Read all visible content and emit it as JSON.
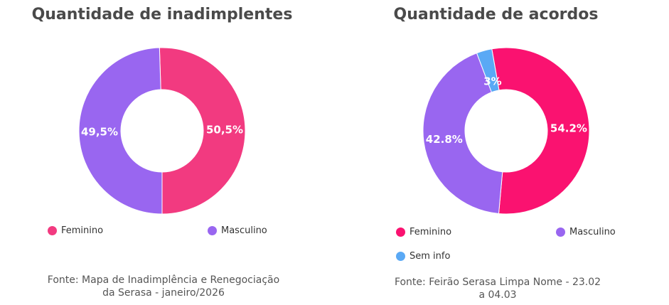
{
  "chart_data": [
    {
      "type": "pie",
      "title": "Quantidade de inadimplentes",
      "categories": [
        "Feminino",
        "Masculino"
      ],
      "values": [
        50.5,
        49.5
      ],
      "labels": [
        "50,5%",
        "49,5%"
      ],
      "colors": [
        "#f23a80",
        "#9966f0"
      ],
      "legend_position": "bottom",
      "source": "Fonte: Mapa de Inadimplência e Renegociação da Serasa - janeiro/2026"
    },
    {
      "type": "pie",
      "title": "Quantidade de acordos",
      "categories": [
        "Feminino",
        "Masculino",
        "Sem info"
      ],
      "values": [
        54.2,
        42.8,
        3
      ],
      "labels": [
        "54.2%",
        "42.8%",
        "3%"
      ],
      "colors": [
        "#fa1270",
        "#9966f0",
        "#5aa9f5"
      ],
      "legend_position": "bottom",
      "source": "Fonte: Feirão Serasa Limpa Nome - 23.02 a 04.03"
    }
  ]
}
